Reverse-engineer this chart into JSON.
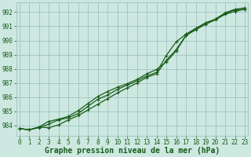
{
  "xlabel": "Graphe pression niveau de la mer (hPa)",
  "bg_color": "#cce8e0",
  "grid_color": "#99bbbb",
  "line_color": "#1a5c1a",
  "x_ticks": [
    0,
    1,
    2,
    3,
    4,
    5,
    6,
    7,
    8,
    9,
    10,
    11,
    12,
    13,
    14,
    15,
    16,
    17,
    18,
    19,
    20,
    21,
    22,
    23
  ],
  "y_ticks": [
    984,
    985,
    986,
    987,
    988,
    989,
    990,
    991,
    992
  ],
  "xlim": [
    -0.3,
    23.3
  ],
  "ylim": [
    983.3,
    992.7
  ],
  "line1": [
    983.8,
    983.7,
    983.9,
    983.85,
    984.05,
    984.4,
    984.7,
    985.1,
    985.5,
    985.9,
    986.3,
    986.65,
    987.0,
    987.4,
    987.65,
    988.6,
    989.35,
    990.35,
    990.75,
    991.15,
    991.45,
    991.85,
    992.05,
    992.2
  ],
  "line2": [
    983.8,
    983.7,
    983.9,
    984.3,
    984.45,
    984.65,
    985.05,
    985.55,
    986.05,
    986.4,
    986.7,
    986.95,
    987.25,
    987.65,
    987.95,
    988.5,
    989.25,
    990.35,
    990.85,
    991.25,
    991.5,
    991.95,
    992.2,
    992.3
  ],
  "line3": [
    983.8,
    983.7,
    983.85,
    984.1,
    984.4,
    984.55,
    984.85,
    985.35,
    985.85,
    986.15,
    986.55,
    986.85,
    987.15,
    987.5,
    987.75,
    988.95,
    989.9,
    990.45,
    990.85,
    991.15,
    991.5,
    991.9,
    992.15,
    992.2
  ],
  "marker": "+",
  "markersize": 3,
  "linewidth": 0.9,
  "xlabel_fontsize": 7,
  "tick_fontsize": 5.5,
  "xlabel_color": "#1a5c1a",
  "tick_color": "#1a5c1a",
  "spine_color": "#99bbbb"
}
